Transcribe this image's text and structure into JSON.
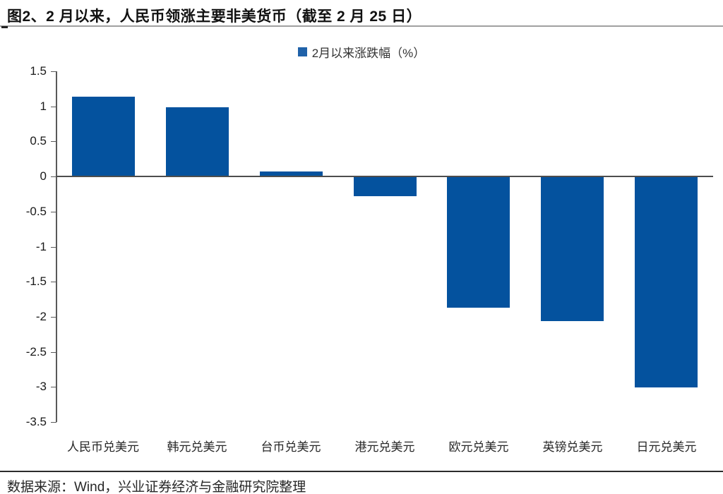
{
  "title": "图2、2 月以来，人民币领涨主要非美货币（截至 2 月 25 日）",
  "legend": {
    "label": "2月以来涨跌幅（%）",
    "marker_color": "#2062a9"
  },
  "footer": "数据来源：Wind，兴业证券经济与金融研究院整理",
  "colors": {
    "bar": "#04529e",
    "axis_line": "#595959",
    "zero_line": "#4d4d4d",
    "title_rule": "#a0a0a0",
    "footer_rule": "#2b2b2b"
  },
  "chart_data": {
    "type": "bar",
    "title": "图2、2 月以来，人民币领涨主要非美货币（截至 2 月 25 日）",
    "legend": [
      "2月以来涨跌幅（%）"
    ],
    "legend_position": "top-center",
    "categories": [
      "人民币兑美元",
      "韩元兑美元",
      "台币兑美元",
      "港元兑美元",
      "欧元兑美元",
      "英镑兑美元",
      "日元兑美元"
    ],
    "series": [
      {
        "name": "2月以来涨跌幅（%）",
        "values": [
          1.14,
          0.99,
          0.07,
          -0.28,
          -1.87,
          -2.06,
          -3.01
        ]
      }
    ],
    "xlabel": "",
    "ylabel": "",
    "ylim": [
      -3.5,
      1.5
    ],
    "ytick_step": 0.5,
    "ytick_labels": [
      "1.5",
      "1",
      "0.5",
      "0",
      "-0.5",
      "-1",
      "-1.5",
      "-2",
      "-2.5",
      "-3",
      "-3.5"
    ],
    "grid": false,
    "bar_color": "#04529e"
  }
}
